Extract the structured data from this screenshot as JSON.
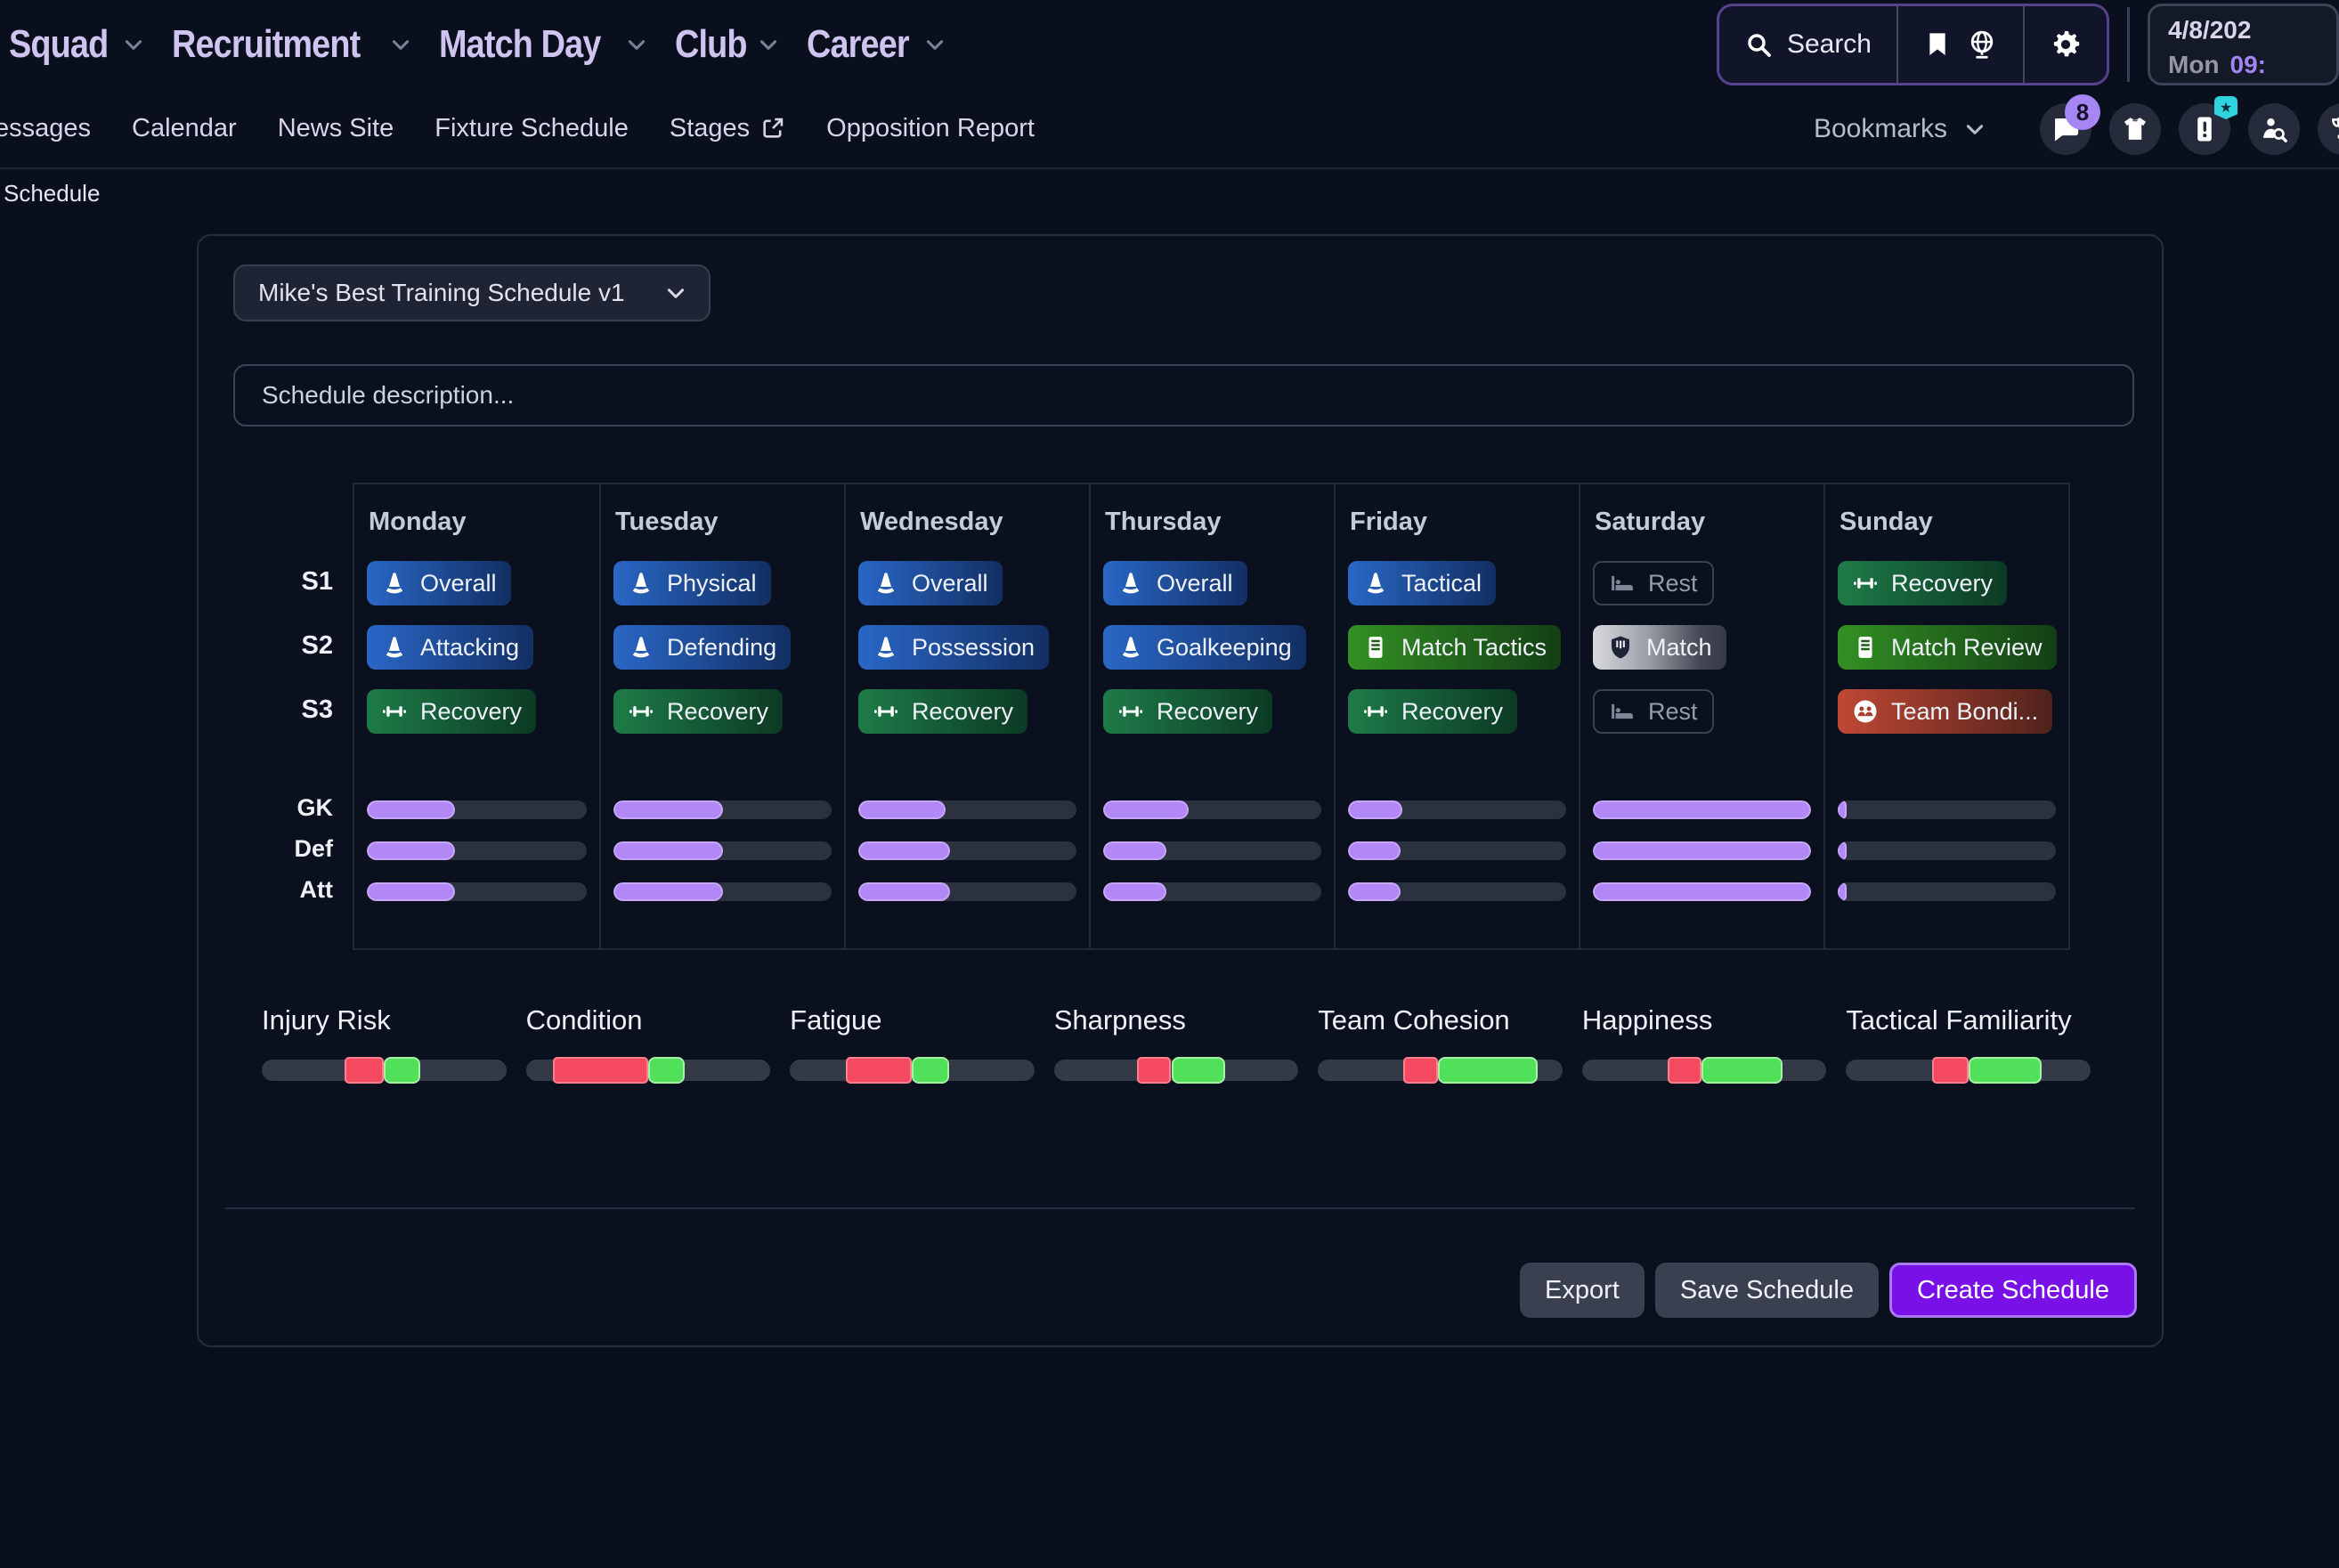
{
  "topnav": {
    "menus": [
      {
        "label": "Squad"
      },
      {
        "label": "Recruitment"
      },
      {
        "label": "Match Day"
      },
      {
        "label": "Club"
      },
      {
        "label": "Career"
      }
    ],
    "search_label": "Search",
    "toolbar_icons": [
      "search",
      "bookmark",
      "globe",
      "gear"
    ],
    "datetime": {
      "date": "4/8/202",
      "day": "Mon",
      "time": "09:"
    }
  },
  "subnav": {
    "items": [
      {
        "label": "essages",
        "name": "messages"
      },
      {
        "label": "Calendar",
        "name": "calendar"
      },
      {
        "label": "News Site",
        "name": "news-site"
      },
      {
        "label": "Fixture Schedule",
        "name": "fixture-schedule"
      },
      {
        "label": "Stages",
        "name": "stages",
        "external": true
      },
      {
        "label": "Opposition Report",
        "name": "opposition-report"
      }
    ],
    "bookmarks_label": "Bookmarks",
    "icon_buttons": [
      {
        "icon": "chat",
        "badge": "8"
      },
      {
        "icon": "shirt"
      },
      {
        "icon": "report-card",
        "badge_star": true
      },
      {
        "icon": "scout-search"
      },
      {
        "icon": "trophy",
        "cut": true
      }
    ]
  },
  "breadcrumb": "Schedule",
  "schedule": {
    "name": "Mike's Best Training Schedule v1",
    "description_placeholder": "Schedule description...",
    "session_rows": [
      "S1",
      "S2",
      "S3"
    ],
    "intensity_rows": [
      "GK",
      "Def",
      "Att"
    ],
    "days": [
      {
        "name": "Monday",
        "sessions": [
          {
            "label": "Overall",
            "style": "blue",
            "icon": "cone"
          },
          {
            "label": "Attacking",
            "style": "blue",
            "icon": "cone"
          },
          {
            "label": "Recovery",
            "style": "green",
            "icon": "barbell"
          }
        ],
        "intensity": [
          40,
          40,
          40
        ]
      },
      {
        "name": "Tuesday",
        "sessions": [
          {
            "label": "Physical",
            "style": "blue",
            "icon": "cone"
          },
          {
            "label": "Defending",
            "style": "blue",
            "icon": "cone"
          },
          {
            "label": "Recovery",
            "style": "green",
            "icon": "barbell"
          }
        ],
        "intensity": [
          50,
          50,
          50
        ]
      },
      {
        "name": "Wednesday",
        "sessions": [
          {
            "label": "Overall",
            "style": "blue",
            "icon": "cone"
          },
          {
            "label": "Possession",
            "style": "blue",
            "icon": "cone"
          },
          {
            "label": "Recovery",
            "style": "green",
            "icon": "barbell"
          }
        ],
        "intensity": [
          40,
          42,
          42
        ]
      },
      {
        "name": "Thursday",
        "sessions": [
          {
            "label": "Overall",
            "style": "blue",
            "icon": "cone"
          },
          {
            "label": "Goalkeeping",
            "style": "blue",
            "icon": "cone"
          },
          {
            "label": "Recovery",
            "style": "green",
            "icon": "barbell"
          }
        ],
        "intensity": [
          39,
          29,
          29
        ]
      },
      {
        "name": "Friday",
        "sessions": [
          {
            "label": "Tactical",
            "style": "blue",
            "icon": "cone"
          },
          {
            "label": "Match Tactics",
            "style": "bright-green",
            "icon": "board"
          },
          {
            "label": "Recovery",
            "style": "green",
            "icon": "barbell"
          }
        ],
        "intensity": [
          25,
          24,
          24
        ]
      },
      {
        "name": "Saturday",
        "sessions": [
          {
            "label": "Rest",
            "style": "rest",
            "icon": "bed"
          },
          {
            "label": "Match",
            "style": "silver",
            "icon": "shield"
          },
          {
            "label": "Rest",
            "style": "rest",
            "icon": "bed"
          }
        ],
        "intensity": [
          100,
          100,
          100
        ]
      },
      {
        "name": "Sunday",
        "sessions": [
          {
            "label": "Recovery",
            "style": "green",
            "icon": "barbell"
          },
          {
            "label": "Match Review",
            "style": "bright-green",
            "icon": "board"
          },
          {
            "label": "Team Bondi...",
            "style": "red",
            "icon": "people"
          }
        ],
        "intensity": [
          4,
          4,
          4
        ]
      }
    ],
    "metrics": [
      {
        "label": "Injury Risk",
        "red_start": 34,
        "red_width": 16,
        "green_width": 15
      },
      {
        "label": "Condition",
        "red_start": 11,
        "red_width": 39,
        "green_width": 15
      },
      {
        "label": "Fatigue",
        "red_start": 23,
        "red_width": 27,
        "green_width": 15
      },
      {
        "label": "Sharpness",
        "red_start": 34,
        "red_width": 14,
        "green_width": 22
      },
      {
        "label": "Team Cohesion",
        "red_start": 35,
        "red_width": 14,
        "green_width": 41
      },
      {
        "label": "Happiness",
        "red_start": 35,
        "red_width": 14,
        "green_width": 33
      },
      {
        "label": "Tactical Familiarity",
        "red_start": 35,
        "red_width": 15,
        "green_width": 30
      }
    ],
    "footer": {
      "export_label": "Export",
      "save_label": "Save Schedule",
      "create_label": "Create Schedule"
    }
  },
  "colors": {
    "accent_purple": "#7a10e8",
    "progress_purple": "#b287f6",
    "metric_red": "#f5495f",
    "metric_green": "#50e05a",
    "session_blue": "#2a67c6",
    "session_green": "#1e7b48",
    "session_bright_green": "#339023",
    "session_red": "#bf4834"
  }
}
